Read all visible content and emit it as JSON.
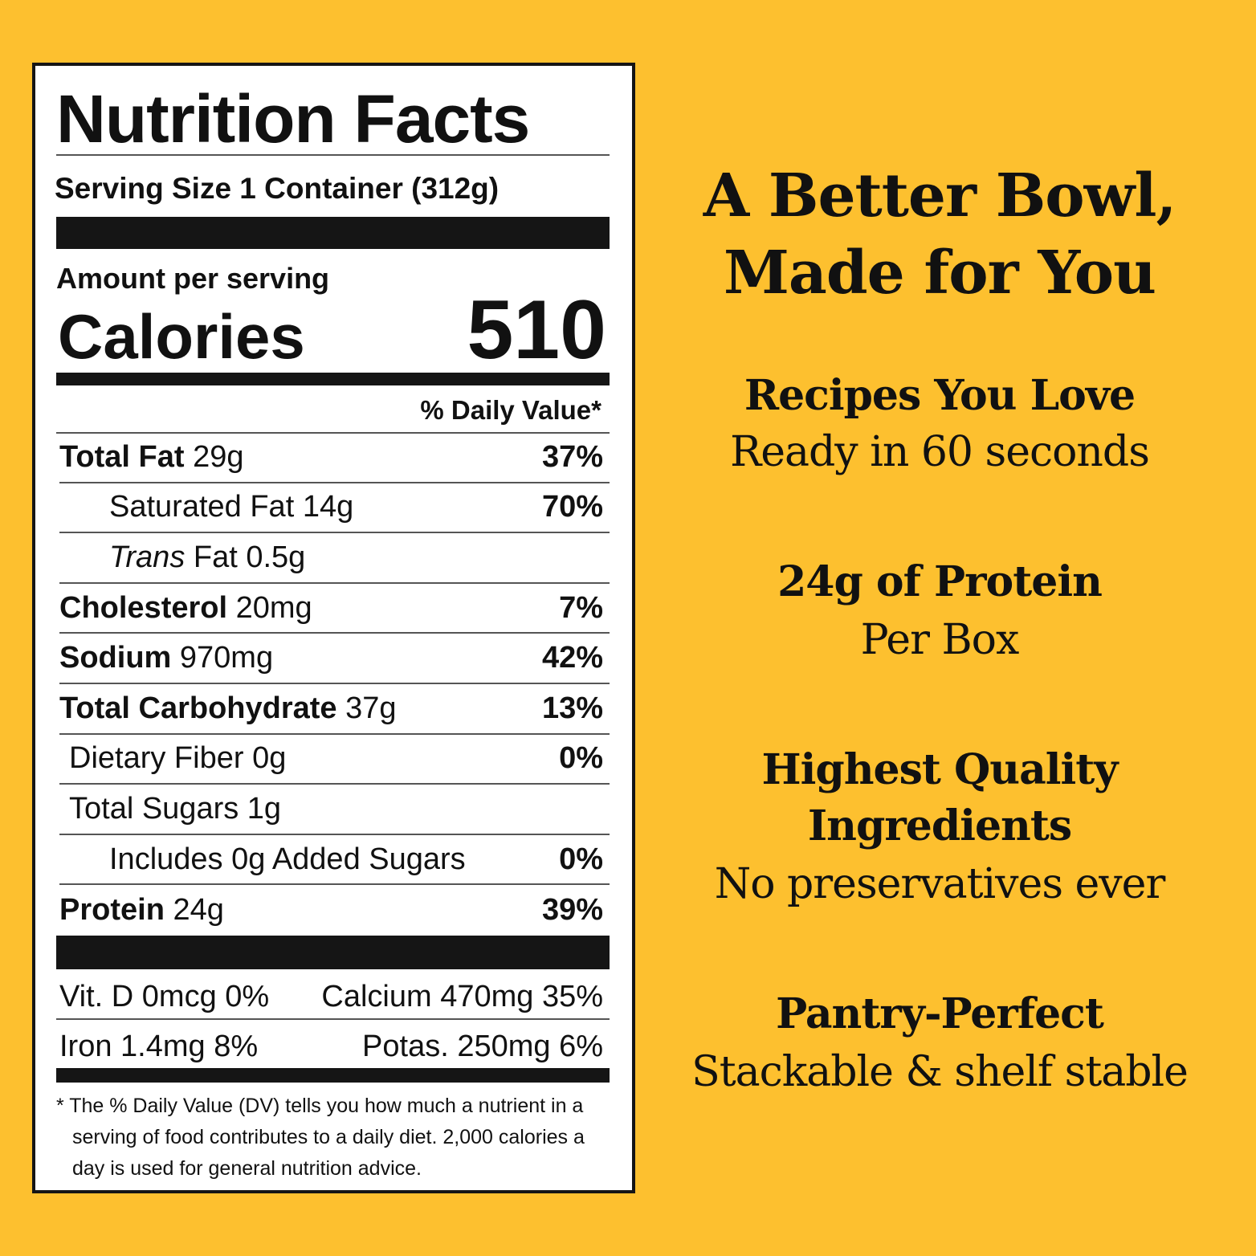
{
  "label": {
    "title": "Nutrition Facts",
    "serving_size": "Serving Size 1 Container (312g)",
    "amount_per_serving": "Amount per serving",
    "calories_label": "Calories",
    "calories_value": "510",
    "daily_value_header": "% Daily Value*",
    "rows": [
      {
        "name": "Total Fat",
        "amount": "29g",
        "dv": "37%",
        "bold": true,
        "indent": 0
      },
      {
        "name": "Saturated Fat",
        "amount": "14g",
        "dv": "70%",
        "bold": false,
        "indent": 2
      },
      {
        "name": "Trans",
        "amount": "Fat 0.5g",
        "dv": "",
        "bold": false,
        "indent": 2,
        "italic": true
      },
      {
        "name": "Cholesterol",
        "amount": "20mg",
        "dv": "7%",
        "bold": true,
        "indent": 0
      },
      {
        "name": "Sodium",
        "amount": "970mg",
        "dv": "42%",
        "bold": true,
        "indent": 0
      },
      {
        "name": "Total Carbohydrate",
        "amount": "37g",
        "dv": "13%",
        "bold": true,
        "indent": 0
      },
      {
        "name": "Dietary Fiber",
        "amount": "0g",
        "dv": "0%",
        "bold": false,
        "indent": 1
      },
      {
        "name": "Total Sugars",
        "amount": "1g",
        "dv": "",
        "bold": false,
        "indent": 1
      },
      {
        "name": "Includes 0g Added Sugars",
        "amount": "",
        "dv": "0%",
        "bold": false,
        "indent": 2
      },
      {
        "name": "Protein",
        "amount": "24g",
        "dv": "39%",
        "bold": true,
        "indent": 0
      }
    ],
    "vitamins": {
      "vit_d": "Vit. D 0mcg 0%",
      "calcium": "Calcium 470mg 35%",
      "iron": "Iron 1.4mg 8%",
      "potassium": "Potas. 250mg 6%"
    },
    "footnote": "* The % Daily Value (DV) tells you how much a nutrient in a serving of food contributes to a daily diet. 2,000 calories a day is used for general nutrition advice."
  },
  "right": {
    "headline_1": "A Better Bowl,",
    "headline_2": "Made for You",
    "features": [
      {
        "title": "Recipes You Love",
        "subtitle": "Ready in 60 seconds"
      },
      {
        "title": "24g of Protein",
        "subtitle": "Per Box"
      },
      {
        "title": "Highest Quality",
        "title_2": "Ingredients",
        "subtitle": "No preservatives ever"
      },
      {
        "title": "Pantry-Perfect",
        "subtitle": "Stackable & shelf stable"
      }
    ]
  },
  "colors": {
    "background": "#FDC02F",
    "text": "#111111"
  }
}
